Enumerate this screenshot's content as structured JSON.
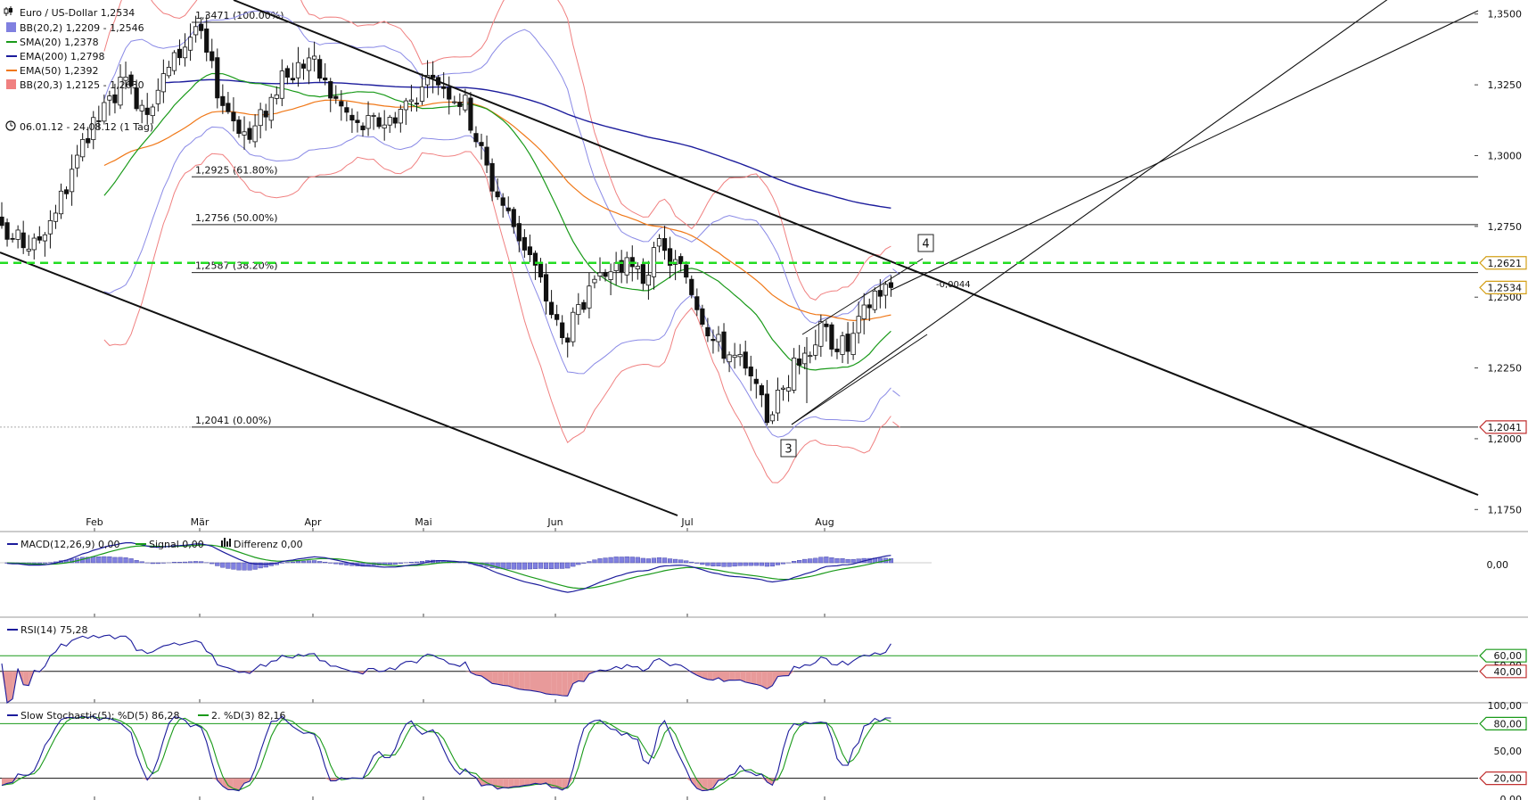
{
  "header": {
    "instrument": "Euro / US-Dollar",
    "last": "1,2534",
    "range": "06.01.12 - 24.08.12 (1 Tag)"
  },
  "legend": [
    {
      "label": "BB(20,2)",
      "value": "1,2209 - 1,2546",
      "color": "#8080e0",
      "icon": "square"
    },
    {
      "label": "SMA(20)",
      "value": "1,2378",
      "color": "#1a9a1a",
      "icon": "line"
    },
    {
      "label": "EMA(200)",
      "value": "1,2798",
      "color": "#1c1c9c",
      "icon": "line"
    },
    {
      "label": "EMA(50)",
      "value": "1,2392",
      "color": "#f07818",
      "icon": "line"
    },
    {
      "label": "BB(20,3)",
      "value": "1,2125 - 1,2630",
      "color": "#f08080",
      "icon": "square"
    }
  ],
  "fib_levels": [
    {
      "text": "1,3471 (100.00%)",
      "price": 1.3471
    },
    {
      "text": "1,2925 (61.80%)",
      "price": 1.2925
    },
    {
      "text": "1,2756 (50.00%)",
      "price": 1.2756
    },
    {
      "text": "1,2587 (38.20%)",
      "price": 1.2587
    },
    {
      "text": "1,2041 (0.00%)",
      "price": 1.2041
    }
  ],
  "price_axis": {
    "ticks": [
      "1,3500",
      "1,3250",
      "1,3000",
      "1,2750",
      "1,2500",
      "1,2250",
      "1,2000",
      "1,1750"
    ],
    "tick_values": [
      1.35,
      1.325,
      1.3,
      1.275,
      1.25,
      1.225,
      1.2,
      1.175
    ],
    "ylim": [
      1.1732,
      1.3537
    ],
    "markers": [
      {
        "text": "1,2621",
        "price": 1.2621,
        "color": "#d4a017"
      },
      {
        "text": "1,2534",
        "price": 1.2534,
        "color": "#d4a017"
      },
      {
        "text": "1,2041",
        "price": 1.2041,
        "color": "#c03030"
      }
    ]
  },
  "months": [
    "Feb",
    "Mär",
    "Apr",
    "Mai",
    "Jun",
    "Jul",
    "Aug"
  ],
  "annotations": {
    "wave_3": "3",
    "wave_4": "4",
    "diff_label": "-0,0044"
  },
  "macd": {
    "legend": [
      {
        "label": "MACD(12,26,9)",
        "value": "0,00",
        "color": "#1c1c9c"
      },
      {
        "label": "Signal",
        "value": "0,00",
        "color": "#1a9a1a"
      },
      {
        "label": "Differenz",
        "value": "0,00",
        "color": "#111111"
      }
    ],
    "axis": "0,00"
  },
  "rsi": {
    "legend": {
      "label": "RSI(14)",
      "value": "75,28"
    },
    "axis": [
      "60,00",
      "50,00",
      "40,00"
    ],
    "levels": [
      60,
      40
    ]
  },
  "stoch": {
    "legend": [
      {
        "label": "Slow Stochastic(5): %D(5)",
        "value": "86,28",
        "color": "#1c1c9c"
      },
      {
        "label": "2. %D(3)",
        "value": "82,16",
        "color": "#1a9a1a"
      }
    ],
    "axis": [
      "100,00",
      "80,00",
      "50,00",
      "20,00",
      "0,00"
    ],
    "levels": [
      80,
      20
    ]
  },
  "chart_data": {
    "type": "candlestick",
    "title": "Euro / US-Dollar",
    "period": "06.01.12 - 24.08.12 (1 Tag)",
    "x_months": [
      "Feb",
      "Mär",
      "Apr",
      "Mai",
      "Jun",
      "Jul",
      "Aug"
    ],
    "ylim": [
      1.1732,
      1.3537
    ],
    "close_path": [
      {
        "date": "06.01.12",
        "close": 1.272
      },
      {
        "date": "16.01.12",
        "close": 1.268
      },
      {
        "date": "23.01.12",
        "close": 1.285
      },
      {
        "date": "31.01.12",
        "close": 1.31
      },
      {
        "date": "07.02.12",
        "close": 1.325
      },
      {
        "date": "14.02.12",
        "close": 1.318
      },
      {
        "date": "27.02.12",
        "close": 1.346
      },
      {
        "date": "05.03.12",
        "close": 1.319
      },
      {
        "date": "12.03.12",
        "close": 1.306
      },
      {
        "date": "19.03.12",
        "close": 1.324
      },
      {
        "date": "27.03.12",
        "close": 1.335
      },
      {
        "date": "02.04.12",
        "close": 1.322
      },
      {
        "date": "09.04.12",
        "close": 1.31
      },
      {
        "date": "17.04.12",
        "close": 1.313
      },
      {
        "date": "24.04.12",
        "close": 1.322
      },
      {
        "date": "30.04.12",
        "close": 1.327
      },
      {
        "date": "07.05.12",
        "close": 1.318
      },
      {
        "date": "14.05.12",
        "close": 1.29
      },
      {
        "date": "23.05.12",
        "close": 1.265
      },
      {
        "date": "31.05.12",
        "close": 1.235
      },
      {
        "date": "07.06.12",
        "close": 1.25
      },
      {
        "date": "14.06.12",
        "close": 1.262
      },
      {
        "date": "21.06.12",
        "close": 1.257
      },
      {
        "date": "26.06.12",
        "close": 1.267
      },
      {
        "date": "03.07.12",
        "close": 1.258
      },
      {
        "date": "10.07.12",
        "close": 1.235
      },
      {
        "date": "17.07.12",
        "close": 1.227
      },
      {
        "date": "24.07.12",
        "close": 1.208
      },
      {
        "date": "01.08.12",
        "close": 1.228
      },
      {
        "date": "07.08.12",
        "close": 1.238
      },
      {
        "date": "14.08.12",
        "close": 1.232
      },
      {
        "date": "21.08.12",
        "close": 1.252
      },
      {
        "date": "24.08.12",
        "close": 1.2534
      }
    ],
    "indicators": {
      "BB(20,2)": [
        1.2209,
        1.2546
      ],
      "SMA(20)": 1.2378,
      "EMA(200)": 1.2798,
      "EMA(50)": 1.2392,
      "BB(20,3)": [
        1.2125,
        1.263
      ]
    },
    "fibonacci": [
      {
        "level": "100.00%",
        "price": 1.3471
      },
      {
        "level": "61.80%",
        "price": 1.2925
      },
      {
        "level": "50.00%",
        "price": 1.2756
      },
      {
        "level": "38.20%",
        "price": 1.2587
      },
      {
        "level": "0.00%",
        "price": 1.2041
      }
    ],
    "horizontal_line": 1.2621,
    "rsi_last": 75.28,
    "stoch_last": {
      "%D(5)": 86.28,
      "%D(3)": 82.16
    }
  }
}
